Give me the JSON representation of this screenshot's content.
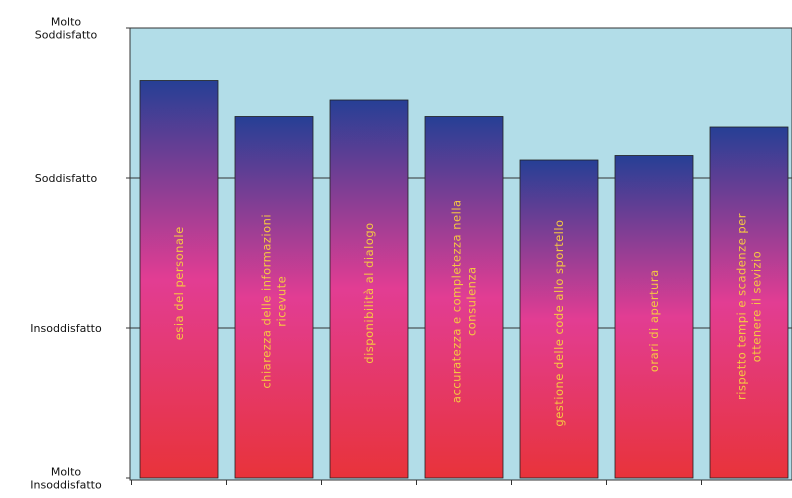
{
  "chart_data": {
    "type": "bar",
    "title": "",
    "xlabel": "",
    "ylabel": "",
    "y_levels": [
      {
        "value": 4,
        "lines": [
          "Molto",
          "Soddisfatto"
        ]
      },
      {
        "value": 3,
        "lines": [
          "Soddisfatto"
        ]
      },
      {
        "value": 2,
        "lines": [
          "Insoddisfatto"
        ]
      },
      {
        "value": 1,
        "lines": [
          "Molto",
          "Insoddisfatto"
        ]
      }
    ],
    "ylim": [
      1,
      4
    ],
    "grid": true,
    "categories": [
      {
        "lines": [
          "esia  del  personale"
        ]
      },
      {
        "lines": [
          "chiarezza  delle  informazioni",
          "ricevute"
        ]
      },
      {
        "lines": [
          "disponibilità  al  dialogo"
        ]
      },
      {
        "lines": [
          "accuratezza  e  completezza  nella",
          "consulenza"
        ]
      },
      {
        "lines": [
          "gestione  delle  code  allo  sportello"
        ]
      },
      {
        "lines": [
          "orari  di  apertura"
        ]
      },
      {
        "lines": [
          "rispetto  tempi  e  scadenze  per",
          "ottenere  il  sevizio"
        ]
      }
    ],
    "values": [
      3.65,
      3.41,
      3.52,
      3.41,
      3.12,
      3.15,
      3.34
    ],
    "colors": {
      "plot_background": "#b2dde8",
      "bar_top": "#263f95",
      "bar_mid": "#e23d93",
      "bar_bottom": "#e8333a",
      "bar_label": "#f5c842",
      "grid": "#333333"
    }
  }
}
